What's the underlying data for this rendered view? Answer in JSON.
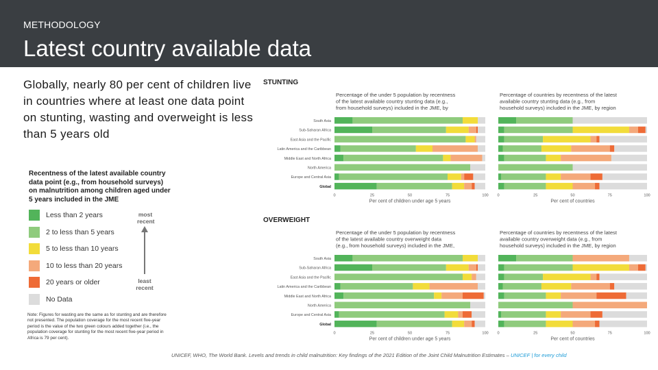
{
  "header": {
    "kicker": "METHODOLOGY",
    "title": "Latest country available data"
  },
  "lead_text": "Globally, nearly 80 per cent of children live in countries where at least one data point on stunting, wasting and overweight is less than 5 years old",
  "legend": {
    "title": "Recentness of the latest available country data point (e.g., from household surveys) on malnutrition among children aged under 5 years included in the JME",
    "items": [
      {
        "label": "Less than 2 years",
        "color": "#52b45a"
      },
      {
        "label": "2 to less than 5 years",
        "color": "#8fcb7d"
      },
      {
        "label": "5 to less than 10 years",
        "color": "#f2dc3a"
      },
      {
        "label": "10 to less than 20 years",
        "color": "#f4a97b"
      },
      {
        "label": "20 years or older",
        "color": "#ee6b36"
      },
      {
        "label": "No Data",
        "color": "#dcdcdc"
      }
    ],
    "arrow_top": "most recent",
    "arrow_bottom": "least recent"
  },
  "note": "Note: Figures for wasting are the same as for stunting and are therefore not presented. The population coverage for the most recent five-year period is the value of the two green colours added together (i.e., the population coverage for stunting for the most recent five-year period in Africa is 79 per cent).",
  "source": {
    "text": "UNICEF, WHO, The World Bank. Levels and trends in child malnutrition: Key findings of the 2021 Edition of the Joint Child Malnutrition Estimates – ",
    "brand": "UNICEF | for every child"
  },
  "chart_data": [
    {
      "type": "bar",
      "section": "STUNTING",
      "title": "Percentage of the under 5 population by recentness of the latest available country stunting data (e.g., from household surveys) included in the JME, by region and global",
      "xlabel": "Per cent of children under age 5 years",
      "xlim": [
        0,
        100
      ],
      "ticks": [
        "0",
        "25",
        "50",
        "75",
        "100"
      ],
      "categories": [
        "South Asia",
        "Sub-Saharan Africa",
        "East Asia and the Pacific",
        "Latin America and the Caribbean",
        "Middle East and North Africa",
        "North America",
        "Europe and Central Asia",
        "Global"
      ],
      "series": [
        {
          "name": "Less than 2 years",
          "values": [
            12,
            25,
            0,
            4,
            6,
            0,
            3,
            28
          ]
        },
        {
          "name": "2 to less than 5 years",
          "values": [
            73,
            49,
            87,
            50,
            66,
            90,
            72,
            50
          ]
        },
        {
          "name": "5 to less than 10 years",
          "values": [
            10,
            15,
            6,
            11,
            5,
            0,
            9,
            8
          ]
        },
        {
          "name": "10 to less than 20 years",
          "values": [
            0,
            5,
            1,
            30,
            21,
            0,
            2,
            5
          ]
        },
        {
          "name": "20 years or older",
          "values": [
            0,
            1,
            0,
            0,
            0,
            0,
            6,
            2
          ]
        },
        {
          "name": "No Data",
          "values": [
            5,
            5,
            6,
            5,
            2,
            10,
            8,
            7
          ]
        }
      ]
    },
    {
      "type": "bar",
      "section": "STUNTING",
      "title": "Percentage of countries by recentness of the latest available country stunting data (e.g., from household surveys) included in the JME, by region and global",
      "xlabel": "Per cent of countries",
      "xlim": [
        0,
        100
      ],
      "ticks": [
        "0",
        "25",
        "50",
        "75",
        "100"
      ],
      "categories": [
        "South Asia",
        "Sub-Saharan Africa",
        "East Asia and the Pacific",
        "Latin America and the Caribbean",
        "Middle East and North Africa",
        "North America",
        "Europe and Central Asia",
        "Global"
      ],
      "series": [
        {
          "name": "Less than 2 years",
          "values": [
            12,
            4,
            4,
            3,
            4,
            0,
            2,
            4
          ]
        },
        {
          "name": "2 to less than 5 years",
          "values": [
            38,
            46,
            26,
            26,
            28,
            50,
            30,
            28
          ]
        },
        {
          "name": "5 to less than 10 years",
          "values": [
            0,
            38,
            32,
            20,
            10,
            0,
            10,
            18
          ]
        },
        {
          "name": "10 to less than 20 years",
          "values": [
            0,
            6,
            4,
            26,
            34,
            0,
            20,
            15
          ]
        },
        {
          "name": "20 years or older",
          "values": [
            0,
            5,
            2,
            3,
            0,
            0,
            8,
            3
          ]
        },
        {
          "name": "No Data",
          "values": [
            50,
            1,
            32,
            22,
            24,
            50,
            30,
            32
          ]
        }
      ]
    },
    {
      "type": "bar",
      "section": "OVERWEIGHT",
      "title": "Percentage of the under 5 population by recentness of the latest available country overweight data (e.g., from household surveys) included in the JME, by region and global",
      "xlabel": "Per cent of children under age 5 years",
      "xlim": [
        0,
        100
      ],
      "ticks": [
        "0",
        "25",
        "50",
        "75",
        "100"
      ],
      "categories": [
        "South Asia",
        "Sub-Saharan Africa",
        "East Asia and the Pacific",
        "Latin America and the Caribbean",
        "Middle East and North Africa",
        "North America",
        "Europe and Central Asia",
        "Global"
      ],
      "series": [
        {
          "name": "Less than 2 years",
          "values": [
            12,
            25,
            0,
            4,
            6,
            0,
            3,
            28
          ]
        },
        {
          "name": "2 to less than 5 years",
          "values": [
            73,
            49,
            85,
            48,
            60,
            90,
            70,
            50
          ]
        },
        {
          "name": "5 to less than 10 years",
          "values": [
            10,
            15,
            6,
            11,
            5,
            0,
            9,
            8
          ]
        },
        {
          "name": "10 to less than 20 years",
          "values": [
            0,
            5,
            3,
            32,
            14,
            0,
            3,
            5
          ]
        },
        {
          "name": "20 years or older",
          "values": [
            0,
            1,
            0,
            0,
            14,
            0,
            6,
            2
          ]
        },
        {
          "name": "No Data",
          "values": [
            5,
            5,
            6,
            5,
            1,
            10,
            9,
            7
          ]
        }
      ]
    },
    {
      "type": "bar",
      "section": "OVERWEIGHT",
      "title": "Percentage of countries by recentness of the latest available country overweight data (e.g., from household surveys) included in the JME, by region and global",
      "xlabel": "Per cent of countries",
      "xlim": [
        0,
        100
      ],
      "ticks": [
        "0",
        "25",
        "50",
        "75",
        "100"
      ],
      "categories": [
        "South Asia",
        "Sub-Saharan Africa",
        "East Asia and the Pacific",
        "Latin America and the Caribbean",
        "Middle East and North Africa",
        "North America",
        "Europe and Central Asia",
        "Global"
      ],
      "series": [
        {
          "name": "Less than 2 years",
          "values": [
            12,
            4,
            4,
            3,
            4,
            0,
            2,
            4
          ]
        },
        {
          "name": "2 to less than 5 years",
          "values": [
            38,
            46,
            26,
            26,
            28,
            50,
            30,
            28
          ]
        },
        {
          "name": "5 to less than 10 years",
          "values": [
            0,
            38,
            32,
            20,
            10,
            0,
            10,
            18
          ]
        },
        {
          "name": "10 to less than 20 years",
          "values": [
            38,
            6,
            4,
            26,
            24,
            50,
            20,
            15
          ]
        },
        {
          "name": "20 years or older",
          "values": [
            0,
            5,
            2,
            3,
            20,
            0,
            8,
            3
          ]
        },
        {
          "name": "No Data",
          "values": [
            12,
            1,
            32,
            22,
            14,
            0,
            30,
            32
          ]
        }
      ]
    }
  ]
}
